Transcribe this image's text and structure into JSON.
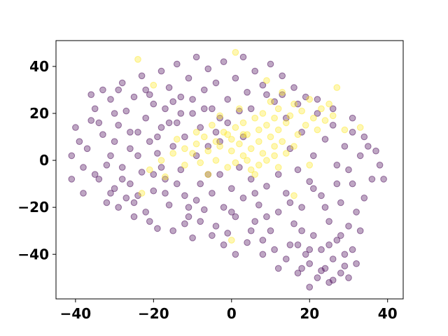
{
  "chart_data": {
    "type": "scatter",
    "title": "",
    "xlabel": "",
    "ylabel": "",
    "xlim": [
      -45,
      44
    ],
    "ylim": [
      -59,
      51
    ],
    "xticks": [
      -40,
      -20,
      0,
      20,
      40
    ],
    "yticks": [
      -40,
      -20,
      0,
      20,
      40
    ],
    "xtick_labels": [
      "−40",
      "−20",
      "0",
      "20",
      "40"
    ],
    "ytick_labels": [
      "−40",
      "−20",
      "0",
      "20",
      "40"
    ],
    "grid": false,
    "legend": null,
    "marker_alpha": 0.35,
    "series": [
      {
        "color": "#440154",
        "points": [
          [
            -41,
            2
          ],
          [
            -41,
            -8
          ],
          [
            -40,
            14
          ],
          [
            -39,
            8
          ],
          [
            -38,
            -3
          ],
          [
            -37,
            5
          ],
          [
            -36,
            17
          ],
          [
            -35,
            22
          ],
          [
            -34,
            -8
          ],
          [
            -33,
            11
          ],
          [
            -33,
            30
          ],
          [
            -32,
            -18
          ],
          [
            -31,
            26
          ],
          [
            -31,
            2
          ],
          [
            -30,
            8
          ],
          [
            -30,
            -12
          ],
          [
            -29,
            15
          ],
          [
            -29,
            -20
          ],
          [
            -28,
            33
          ],
          [
            -28,
            -3
          ],
          [
            -27,
            21
          ],
          [
            -26,
            -10
          ],
          [
            -26,
            5
          ],
          [
            -25,
            27
          ],
          [
            -25,
            -24
          ],
          [
            -24,
            12
          ],
          [
            -24,
            -15
          ],
          [
            -23,
            36
          ],
          [
            -23,
            -5
          ],
          [
            -22,
            18
          ],
          [
            -22,
            -22
          ],
          [
            -21,
            8
          ],
          [
            -21,
            28
          ],
          [
            -20,
            -13
          ],
          [
            -20,
            24
          ],
          [
            -19,
            -29
          ],
          [
            -19,
            3
          ],
          [
            -18,
            14
          ],
          [
            -18,
            38
          ],
          [
            -17,
            -8
          ],
          [
            -17,
            22
          ],
          [
            -16,
            -19
          ],
          [
            -16,
            31
          ],
          [
            -15,
            6
          ],
          [
            -15,
            -30
          ],
          [
            -14,
            16
          ],
          [
            -14,
            41
          ],
          [
            -13,
            -4
          ],
          [
            -13,
            27
          ],
          [
            -12,
            -15
          ],
          [
            -12,
            10
          ],
          [
            -11,
            35
          ],
          [
            -11,
            -24
          ],
          [
            -10,
            20
          ],
          [
            -10,
            -33
          ],
          [
            -9,
            2
          ],
          [
            -9,
            44
          ],
          [
            -8,
            -10
          ],
          [
            -8,
            14
          ],
          [
            -7,
            30
          ],
          [
            -7,
            -21
          ],
          [
            -6,
            6
          ],
          [
            -6,
            39
          ],
          [
            -5,
            -14
          ],
          [
            -5,
            22
          ],
          [
            -4,
            -28
          ],
          [
            -4,
            33
          ],
          [
            -3,
            -6
          ],
          [
            -3,
            18
          ],
          [
            -2,
            -20
          ],
          [
            -2,
            42
          ],
          [
            -1,
            -31
          ],
          [
            -1,
            26
          ],
          [
            0,
            -12
          ],
          [
            1,
            35
          ],
          [
            1,
            -24
          ],
          [
            2,
            -3
          ],
          [
            2,
            21
          ],
          [
            3,
            -16
          ],
          [
            3,
            44
          ],
          [
            4,
            -35
          ],
          [
            4,
            29
          ],
          [
            5,
            -8
          ],
          [
            6,
            38
          ],
          [
            6,
            -26
          ],
          [
            7,
            -19
          ],
          [
            8,
            32
          ],
          [
            8,
            -40
          ],
          [
            9,
            -11
          ],
          [
            10,
            41
          ],
          [
            10,
            -30
          ],
          [
            11,
            25
          ],
          [
            12,
            -22
          ],
          [
            12,
            -46
          ],
          [
            13,
            36
          ],
          [
            14,
            -14
          ],
          [
            14,
            18
          ],
          [
            15,
            -36
          ],
          [
            15,
            5
          ],
          [
            16,
            -27
          ],
          [
            16,
            31
          ],
          [
            17,
            -48
          ],
          [
            17,
            -4
          ],
          [
            18,
            12
          ],
          [
            18,
            -20
          ],
          [
            19,
            -40
          ],
          [
            19,
            27
          ],
          [
            20,
            -9
          ],
          [
            20,
            -44
          ],
          [
            21,
            2
          ],
          [
            21,
            -32
          ],
          [
            22,
            -50
          ],
          [
            22,
            20
          ],
          [
            23,
            -38
          ],
          [
            23,
            -15
          ],
          [
            24,
            -46
          ],
          [
            24,
            9
          ],
          [
            25,
            -26
          ],
          [
            25,
            -52
          ],
          [
            26,
            -42
          ],
          [
            26,
            15
          ],
          [
            27,
            -34
          ],
          [
            27,
            -2
          ],
          [
            28,
            -48
          ],
          [
            28,
            -18
          ],
          [
            29,
            -40
          ],
          [
            29,
            6
          ],
          [
            30,
            -28
          ],
          [
            30,
            -50
          ],
          [
            31,
            -10
          ],
          [
            31,
            12
          ],
          [
            32,
            -44
          ],
          [
            32,
            -22
          ],
          [
            33,
            2
          ],
          [
            34,
            -16
          ],
          [
            35,
            6
          ],
          [
            36,
            -8
          ],
          [
            37,
            4
          ],
          [
            38,
            -2
          ],
          [
            39,
            -8
          ],
          [
            -36,
            28
          ],
          [
            -32,
            -2
          ],
          [
            -29,
            30
          ],
          [
            -27,
            -16
          ],
          [
            -24,
            2
          ],
          [
            -21,
            -26
          ],
          [
            -18,
            -3
          ],
          [
            -15,
            25
          ],
          [
            -12,
            -27
          ],
          [
            -9,
            -17
          ],
          [
            -6,
            -6
          ],
          [
            -3,
            8
          ],
          [
            0,
            -22
          ],
          [
            3,
            10
          ],
          [
            6,
            -14
          ],
          [
            9,
            -24
          ],
          [
            12,
            -6
          ],
          [
            15,
            -18
          ],
          [
            18,
            -30
          ],
          [
            21,
            -12
          ],
          [
            24,
            -20
          ],
          [
            27,
            -10
          ],
          [
            30,
            -4
          ],
          [
            33,
            -30
          ],
          [
            20,
            -54
          ],
          [
            23,
            -47
          ],
          [
            26,
            -51
          ],
          [
            29,
            -45
          ],
          [
            18,
            -46
          ],
          [
            31,
            -38
          ],
          [
            -38,
            -14
          ],
          [
            -34,
            16
          ],
          [
            -30,
            20
          ],
          [
            -26,
            12
          ],
          [
            -22,
            30
          ],
          [
            -19,
            10
          ],
          [
            -16,
            16
          ],
          [
            -13,
            20
          ],
          [
            -10,
            26
          ],
          [
            -7,
            22
          ],
          [
            -4,
            12
          ],
          [
            -1,
            16
          ],
          [
            5,
            22
          ],
          [
            9,
            28
          ],
          [
            13,
            28
          ],
          [
            17,
            24
          ],
          [
            22,
            26
          ],
          [
            26,
            22
          ],
          [
            31,
            18
          ],
          [
            34,
            10
          ],
          [
            -35,
            -6
          ],
          [
            -31,
            -14
          ],
          [
            -28,
            -8
          ],
          [
            -25,
            -18
          ],
          [
            -20,
            -6
          ],
          [
            -17,
            -14
          ],
          [
            -14,
            -10
          ],
          [
            -11,
            -20
          ],
          [
            -8,
            -26
          ],
          [
            -5,
            -32
          ],
          [
            -2,
            -36
          ],
          [
            1,
            -40
          ],
          [
            5,
            -30
          ],
          [
            8,
            -34
          ],
          [
            11,
            -38
          ],
          [
            14,
            -42
          ],
          [
            17,
            -36
          ],
          [
            20,
            -38
          ],
          [
            25,
            -36
          ],
          [
            28,
            -32
          ]
        ]
      },
      {
        "color": "#fde725",
        "points": [
          [
            -24,
            43
          ],
          [
            -20,
            32
          ],
          [
            -17,
            -7
          ],
          [
            -14,
            9
          ],
          [
            -12,
            -2
          ],
          [
            -10,
            3
          ],
          [
            -9,
            7
          ],
          [
            -8,
            -1
          ],
          [
            -7,
            10
          ],
          [
            -6,
            4
          ],
          [
            -5,
            15
          ],
          [
            -4,
            0
          ],
          [
            -3,
            6
          ],
          [
            -2,
            12
          ],
          [
            -1,
            -3
          ],
          [
            0,
            4
          ],
          [
            0,
            9
          ],
          [
            1,
            14
          ],
          [
            1,
            -1
          ],
          [
            2,
            7
          ],
          [
            3,
            2
          ],
          [
            3,
            16
          ],
          [
            4,
            11
          ],
          [
            5,
            5
          ],
          [
            5,
            -4
          ],
          [
            6,
            18
          ],
          [
            7,
            8
          ],
          [
            7,
            13
          ],
          [
            8,
            3
          ],
          [
            8,
            20
          ],
          [
            9,
            15
          ],
          [
            9,
            0
          ],
          [
            10,
            10
          ],
          [
            10,
            25
          ],
          [
            11,
            6
          ],
          [
            11,
            18
          ],
          [
            12,
            22
          ],
          [
            12,
            13
          ],
          [
            13,
            8
          ],
          [
            13,
            29
          ],
          [
            14,
            16
          ],
          [
            15,
            19
          ],
          [
            16,
            24
          ],
          [
            17,
            11
          ],
          [
            18,
            21
          ],
          [
            19,
            15
          ],
          [
            20,
            26
          ],
          [
            21,
            18
          ],
          [
            22,
            13
          ],
          [
            23,
            22
          ],
          [
            24,
            17
          ],
          [
            25,
            24
          ],
          [
            26,
            19
          ],
          [
            27,
            31
          ],
          [
            29,
            13
          ],
          [
            33,
            14
          ],
          [
            1,
            46
          ],
          [
            -12,
            5
          ],
          [
            -15,
            3
          ],
          [
            -18,
            0
          ],
          [
            -21,
            -4
          ],
          [
            -23,
            -14
          ],
          [
            16,
            -15
          ],
          [
            14,
            3
          ],
          [
            6,
            -6
          ],
          [
            -6,
            -6
          ],
          [
            0,
            -34
          ],
          [
            9,
            34
          ],
          [
            -3,
            19
          ],
          [
            20,
            -2
          ],
          [
            4,
            0
          ],
          [
            -9,
            12
          ],
          [
            11,
            2
          ],
          [
            2,
            22
          ],
          [
            -4,
            8
          ],
          [
            7,
            -2
          ],
          [
            16,
            6
          ],
          [
            -1,
            11
          ],
          [
            12,
            -3
          ],
          [
            3,
            11
          ]
        ]
      }
    ]
  }
}
